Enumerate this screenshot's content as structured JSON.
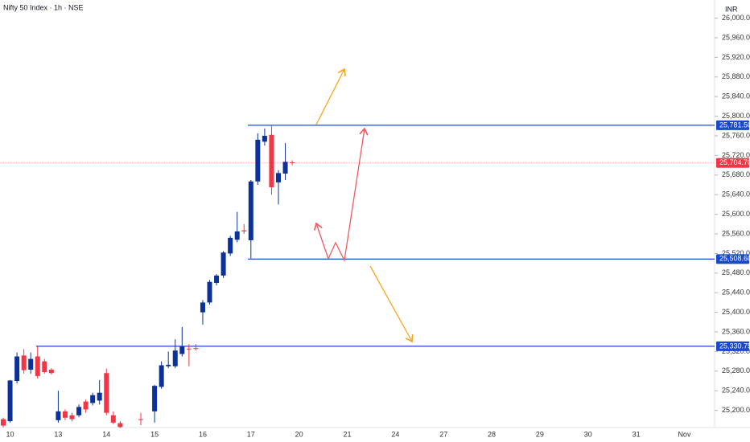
{
  "chart_data": {
    "type": "candlestick",
    "title": "Nifty 50 Index · 1h · NSE",
    "currency": "INR",
    "categories": [
      null,
      "10",
      null,
      null,
      null,
      null,
      null,
      null,
      "13",
      null,
      null,
      null,
      null,
      null,
      null,
      "14",
      null,
      null,
      null,
      null,
      null,
      null,
      "15",
      null,
      null,
      null,
      null,
      null,
      null,
      "16",
      null,
      null,
      null,
      null,
      null,
      null,
      "17",
      null,
      null,
      null,
      null,
      null,
      null,
      "20",
      null,
      null,
      null,
      null,
      null,
      null,
      "21",
      null,
      null,
      null,
      null,
      null,
      null,
      "24",
      null,
      null,
      null,
      null,
      null,
      null,
      "27",
      null,
      null,
      null,
      null,
      null,
      null,
      "28",
      null,
      null,
      null,
      null,
      null,
      null,
      "29",
      null,
      null,
      null,
      null,
      null,
      null,
      "30",
      null,
      null,
      null,
      null,
      null,
      null,
      "31",
      null,
      null,
      null,
      null,
      null,
      null,
      "Nov"
    ],
    "open": [
      25182,
      25178,
      25260,
      25312,
      25283,
      25310,
      25300,
      25283,
      25180,
      25198,
      25190,
      25190,
      25218,
      25215,
      25220,
      25276,
      25190,
      25174,
      null,
      null,
      25182,
      null,
      25198,
      25248,
      25290,
      25290,
      25315,
      25326,
      25327,
      25400,
      25420,
      25460,
      25475,
      25520,
      25548,
      25567,
      25547,
      25667,
      25748,
      25762,
      25665,
      25683,
      25706,
      null,
      null,
      null,
      null,
      null,
      null,
      null,
      null,
      null,
      null,
      null,
      null,
      null,
      null,
      null,
      null,
      null,
      null,
      null,
      null,
      null,
      null,
      null,
      null,
      null,
      null,
      null,
      null,
      null,
      null,
      null,
      null,
      null,
      null,
      null,
      null,
      null,
      null,
      null,
      null,
      null,
      null,
      null,
      null,
      null,
      null,
      null,
      null,
      null,
      null,
      null,
      null,
      null,
      null,
      null,
      null,
      null
    ],
    "high": [
      25185,
      25262,
      25318,
      25325,
      25318,
      25330,
      25305,
      25286,
      25240,
      25202,
      25195,
      25212,
      25222,
      25236,
      25262,
      25285,
      25198,
      25178,
      null,
      null,
      25195,
      null,
      25252,
      25300,
      25320,
      25345,
      25370,
      25335,
      25335,
      25425,
      25466,
      25478,
      25525,
      25556,
      25605,
      25580,
      25670,
      25765,
      25775,
      25781.5,
      25690,
      25745,
      25710,
      null,
      null,
      null,
      null,
      null,
      null,
      null,
      null,
      null,
      null,
      null,
      null,
      null,
      null,
      null,
      null,
      null,
      null,
      null,
      null,
      null,
      null,
      null,
      null,
      null,
      null,
      null,
      null,
      null,
      null,
      null,
      null,
      null,
      null,
      null,
      null,
      null,
      null,
      null,
      null,
      null,
      null,
      null,
      null,
      null,
      null,
      null,
      null,
      null,
      null,
      null,
      null,
      null,
      null,
      null,
      null,
      null
    ],
    "low": [
      25165,
      25175,
      25255,
      25275,
      25275,
      25265,
      25275,
      25273,
      25175,
      25180,
      25178,
      25186,
      25195,
      25210,
      25212,
      25190,
      25172,
      25164,
      null,
      null,
      25170,
      null,
      25175,
      25244,
      25286,
      25286,
      25310,
      25290,
      25322,
      25375,
      25416,
      25455,
      25470,
      25515,
      25543,
      25560,
      25510,
      25660,
      25740,
      25640,
      25620,
      25670,
      25700,
      null,
      null,
      null,
      null,
      null,
      null,
      null,
      null,
      null,
      null,
      null,
      null,
      null,
      null,
      null,
      null,
      null,
      null,
      null,
      null,
      null,
      null,
      null,
      null,
      null,
      null,
      null,
      null,
      null,
      null,
      null,
      null,
      null,
      null,
      null,
      null,
      null,
      null,
      null,
      null,
      null,
      null,
      null,
      null,
      null,
      null,
      null,
      null,
      null,
      null,
      null,
      null,
      null,
      null,
      null,
      null,
      null
    ],
    "close": [
      25169,
      25261,
      25310,
      25282,
      25305,
      25270,
      25278,
      25276,
      25198,
      25185,
      25182,
      25207,
      25202,
      25231,
      25236,
      25195,
      25175,
      25166,
      null,
      null,
      25181,
      null,
      25250,
      25292,
      25293,
      25322,
      25330,
      25325,
      25326,
      25420,
      25462,
      25475,
      25522,
      25552,
      25565,
      25565,
      25667,
      25752,
      25760,
      25655,
      25684,
      25707,
      25704.7,
      null,
      null,
      null,
      null,
      null,
      null,
      null,
      null,
      null,
      null,
      null,
      null,
      null,
      null,
      null,
      null,
      null,
      null,
      null,
      null,
      null,
      null,
      null,
      null,
      null,
      null,
      null,
      null,
      null,
      null,
      null,
      null,
      null,
      null,
      null,
      null,
      null,
      null,
      null,
      null,
      null,
      null,
      null,
      null,
      null,
      null,
      null,
      null,
      null,
      null,
      null,
      null,
      null,
      null,
      null,
      null,
      null
    ],
    "up_color": "#0c3299",
    "down_color": "#f23645",
    "level_color": "#1848cc",
    "levels": [
      {
        "value": 25781.5,
        "label": "25,781.50"
      },
      {
        "value": 25508.6,
        "label": "25,508.60"
      },
      {
        "value": 25330.75,
        "label": "25,330.75"
      }
    ],
    "last_price": {
      "value": 25704.7,
      "label": "25,704.70"
    },
    "ylim": [
      25165,
      26037
    ],
    "yticks": [
      {
        "value": 25200,
        "label": "25,200.00"
      },
      {
        "value": 25240,
        "label": "25,240.00"
      },
      {
        "value": 25280,
        "label": "25,280.00"
      },
      {
        "value": 25320,
        "label": "25,320.00"
      },
      {
        "value": 25360,
        "label": "25,360.00"
      },
      {
        "value": 25400,
        "label": "25,400.00"
      },
      {
        "value": 25440,
        "label": "25,440.00"
      },
      {
        "value": 25480,
        "label": "25,480.00"
      },
      {
        "value": 25520,
        "label": "25,520.00"
      },
      {
        "value": 25560,
        "label": "25,560.00"
      },
      {
        "value": 25600,
        "label": "25,600.00"
      },
      {
        "value": 25640,
        "label": "25,640.00"
      },
      {
        "value": 25680,
        "label": "25,680.00"
      },
      {
        "value": 25720,
        "label": "25,720.00"
      },
      {
        "value": 25760,
        "label": "25,760.00"
      },
      {
        "value": 25800,
        "label": "25,800.00"
      },
      {
        "value": 25840,
        "label": "25,840.00"
      },
      {
        "value": 25880,
        "label": "25,880.00"
      },
      {
        "value": 25920,
        "label": "25,920.00"
      },
      {
        "value": 25960,
        "label": "25,960.00"
      },
      {
        "value": 26000,
        "label": "26,000.00"
      }
    ]
  }
}
